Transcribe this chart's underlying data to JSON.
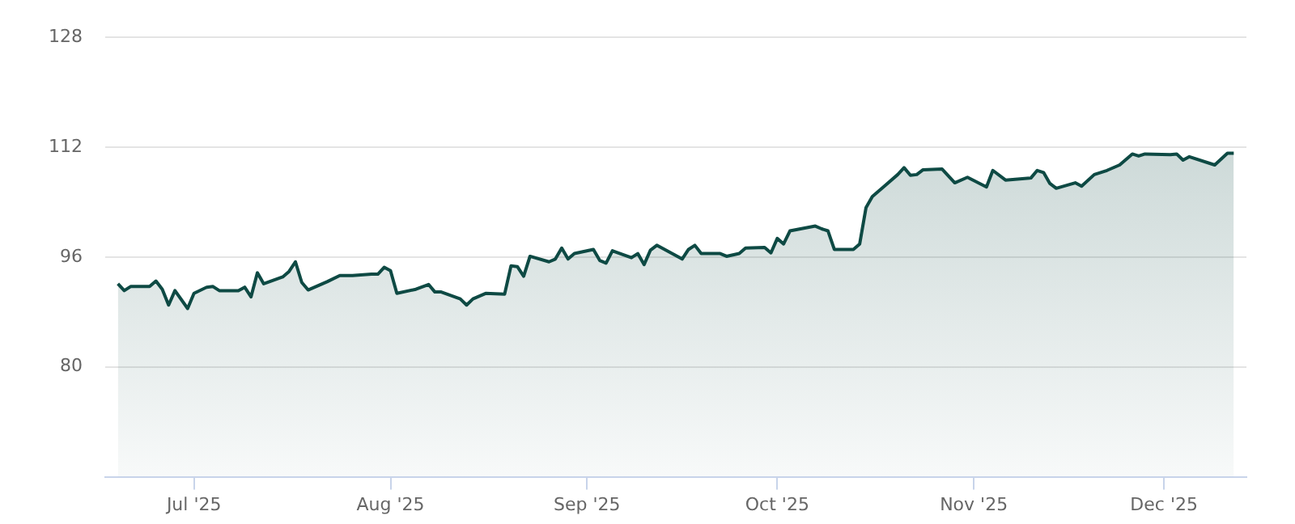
{
  "chart_data": {
    "type": "area",
    "x": [
      "2025-06-19",
      "2025-06-20",
      "2025-06-21",
      "2025-06-24",
      "2025-06-25",
      "2025-06-26",
      "2025-06-27",
      "2025-06-28",
      "2025-06-30",
      "2025-07-01",
      "2025-07-03",
      "2025-07-04",
      "2025-07-05",
      "2025-07-08",
      "2025-07-09",
      "2025-07-10",
      "2025-07-11",
      "2025-07-12",
      "2025-07-15",
      "2025-07-16",
      "2025-07-17",
      "2025-07-18",
      "2025-07-19",
      "2025-07-22",
      "2025-07-24",
      "2025-07-26",
      "2025-07-29",
      "2025-07-30",
      "2025-07-31",
      "2025-08-01",
      "2025-08-02",
      "2025-08-05",
      "2025-08-07",
      "2025-08-08",
      "2025-08-09",
      "2025-08-12",
      "2025-08-13",
      "2025-08-14",
      "2025-08-16",
      "2025-08-19",
      "2025-08-20",
      "2025-08-21",
      "2025-08-22",
      "2025-08-23",
      "2025-08-26",
      "2025-08-27",
      "2025-08-28",
      "2025-08-29",
      "2025-08-30",
      "2025-09-02",
      "2025-09-03",
      "2025-09-04",
      "2025-09-05",
      "2025-09-08",
      "2025-09-09",
      "2025-09-10",
      "2025-09-11",
      "2025-09-12",
      "2025-09-16",
      "2025-09-17",
      "2025-09-18",
      "2025-09-19",
      "2025-09-22",
      "2025-09-23",
      "2025-09-25",
      "2025-09-26",
      "2025-09-29",
      "2025-09-30",
      "2025-10-01",
      "2025-10-02",
      "2025-10-03",
      "2025-10-07",
      "2025-10-08",
      "2025-10-09",
      "2025-10-10",
      "2025-10-13",
      "2025-10-14",
      "2025-10-15",
      "2025-10-16",
      "2025-10-18",
      "2025-10-20",
      "2025-10-21",
      "2025-10-22",
      "2025-10-23",
      "2025-10-24",
      "2025-10-27",
      "2025-10-28",
      "2025-10-29",
      "2025-10-31",
      "2025-11-03",
      "2025-11-04",
      "2025-11-06",
      "2025-11-10",
      "2025-11-11",
      "2025-11-12",
      "2025-11-13",
      "2025-11-14",
      "2025-11-17",
      "2025-11-18",
      "2025-11-20",
      "2025-11-22",
      "2025-11-24",
      "2025-11-26",
      "2025-11-27",
      "2025-11-28",
      "2025-12-02",
      "2025-12-03",
      "2025-12-04",
      "2025-12-05",
      "2025-12-09",
      "2025-12-11",
      "2025-12-12"
    ],
    "series": [
      {
        "color": "#0e4a44",
        "values": [
          92.1,
          91.1,
          91.7,
          91.7,
          92.5,
          91.3,
          89.0,
          91.1,
          88.5,
          90.7,
          91.6,
          91.7,
          91.1,
          91.1,
          91.6,
          90.2,
          93.7,
          92.1,
          93.1,
          93.9,
          95.3,
          92.3,
          91.2,
          92.4,
          93.3,
          93.3,
          93.5,
          93.5,
          94.5,
          94.0,
          90.7,
          91.3,
          92.0,
          90.9,
          90.9,
          89.9,
          89.0,
          89.9,
          90.7,
          90.6,
          94.7,
          94.6,
          93.2,
          96.1,
          95.3,
          95.7,
          97.3,
          95.7,
          96.5,
          97.1,
          95.5,
          95.1,
          96.9,
          95.9,
          96.5,
          94.9,
          97.0,
          97.7,
          95.7,
          97.1,
          97.7,
          96.5,
          96.5,
          96.1,
          96.5,
          97.3,
          97.4,
          96.6,
          98.7,
          97.9,
          99.8,
          100.5,
          100.1,
          99.8,
          97.1,
          97.1,
          97.9,
          103.2,
          104.8,
          106.4,
          108.0,
          109.0,
          107.9,
          108.0,
          108.7,
          108.8,
          107.8,
          106.8,
          107.6,
          106.2,
          108.6,
          107.2,
          107.5,
          108.6,
          108.3,
          106.7,
          106.0,
          106.8,
          106.3,
          108.0,
          108.6,
          109.4,
          111.0,
          110.7,
          111.0,
          110.9,
          111.0,
          110.1,
          110.6,
          109.4,
          111.1,
          111.1
        ]
      }
    ],
    "xlim": [
      "2025-06-17",
      "2025-12-14"
    ],
    "xticks": [
      {
        "value": "2025-07-01",
        "label": "Jul '25"
      },
      {
        "value": "2025-08-01",
        "label": "Aug '25"
      },
      {
        "value": "2025-09-01",
        "label": "Sep '25"
      },
      {
        "value": "2025-10-01",
        "label": "Oct '25"
      },
      {
        "value": "2025-11-01",
        "label": "Nov '25"
      },
      {
        "value": "2025-12-01",
        "label": "Dec '25"
      }
    ],
    "ylim": [
      64,
      128
    ],
    "yticks": [
      {
        "value": 64,
        "label": null
      },
      80,
      96,
      112,
      128
    ],
    "grid": "y",
    "legend": false,
    "marker": "none",
    "line_style": "solid"
  }
}
